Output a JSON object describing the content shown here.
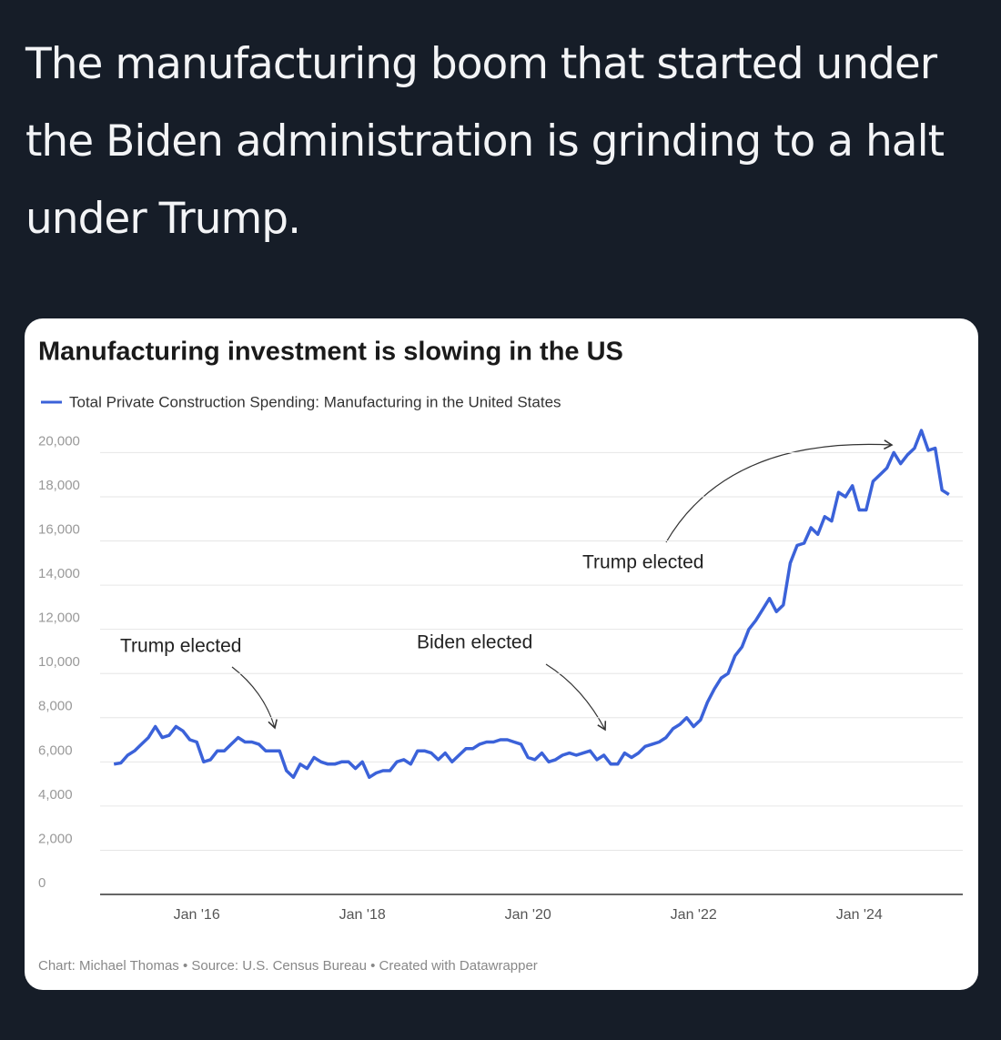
{
  "tweet": {
    "text": "The manufacturing boom that started under the Biden administration is grinding to a halt under Trump."
  },
  "chart_data": {
    "type": "line",
    "title": "Manufacturing investment is slowing in the US",
    "source": "Chart: Michael Thomas • Source: U.S. Census Bureau • Created with Datawrapper",
    "x": [
      "2015-01",
      "2015-02",
      "2015-03",
      "2015-04",
      "2015-05",
      "2015-06",
      "2015-07",
      "2015-08",
      "2015-09",
      "2015-10",
      "2015-11",
      "2015-12",
      "2016-01",
      "2016-02",
      "2016-03",
      "2016-04",
      "2016-05",
      "2016-06",
      "2016-07",
      "2016-08",
      "2016-09",
      "2016-10",
      "2016-11",
      "2016-12",
      "2017-01",
      "2017-02",
      "2017-03",
      "2017-04",
      "2017-05",
      "2017-06",
      "2017-07",
      "2017-08",
      "2017-09",
      "2017-10",
      "2017-11",
      "2017-12",
      "2018-01",
      "2018-02",
      "2018-03",
      "2018-04",
      "2018-05",
      "2018-06",
      "2018-07",
      "2018-08",
      "2018-09",
      "2018-10",
      "2018-11",
      "2018-12",
      "2019-01",
      "2019-02",
      "2019-03",
      "2019-04",
      "2019-05",
      "2019-06",
      "2019-07",
      "2019-08",
      "2019-09",
      "2019-10",
      "2019-11",
      "2019-12",
      "2020-01",
      "2020-02",
      "2020-03",
      "2020-04",
      "2020-05",
      "2020-06",
      "2020-07",
      "2020-08",
      "2020-09",
      "2020-10",
      "2020-11",
      "2020-12",
      "2021-01",
      "2021-02",
      "2021-03",
      "2021-04",
      "2021-05",
      "2021-06",
      "2021-07",
      "2021-08",
      "2021-09",
      "2021-10",
      "2021-11",
      "2021-12",
      "2022-01",
      "2022-02",
      "2022-03",
      "2022-04",
      "2022-05",
      "2022-06",
      "2022-07",
      "2022-08",
      "2022-09",
      "2022-10",
      "2022-11",
      "2022-12",
      "2023-01",
      "2023-02",
      "2023-03",
      "2023-04",
      "2023-05",
      "2023-06",
      "2023-07",
      "2023-08",
      "2023-09",
      "2023-10",
      "2023-11",
      "2023-12",
      "2024-01",
      "2024-02",
      "2024-03",
      "2024-04",
      "2024-05",
      "2024-06",
      "2024-07",
      "2024-08",
      "2024-09",
      "2024-10",
      "2024-11",
      "2024-12",
      "2025-01",
      "2025-02"
    ],
    "series": [
      {
        "name": "Total Private Construction Spending: Manufacturing in the United States",
        "color": "#3b62d9",
        "values": [
          5900,
          5950,
          6300,
          6500,
          6800,
          7100,
          7600,
          7100,
          7200,
          7600,
          7400,
          7000,
          6900,
          6000,
          6100,
          6500,
          6500,
          6800,
          7100,
          6900,
          6900,
          6800,
          6500,
          6500,
          6500,
          5600,
          5300,
          5900,
          5700,
          6200,
          6000,
          5900,
          5900,
          6000,
          6000,
          5700,
          6000,
          5300,
          5500,
          5600,
          5600,
          6000,
          6100,
          5900,
          6500,
          6500,
          6400,
          6100,
          6400,
          6000,
          6300,
          6600,
          6600,
          6800,
          6900,
          6900,
          7000,
          7000,
          6900,
          6800,
          6200,
          6100,
          6400,
          6000,
          6100,
          6300,
          6400,
          6300,
          6400,
          6500,
          6100,
          6300,
          5900,
          5900,
          6400,
          6200,
          6400,
          6700,
          6800,
          6900,
          7100,
          7500,
          7700,
          8000,
          7600,
          7900,
          8700,
          9300,
          9800,
          10000,
          10800,
          11200,
          12000,
          12400,
          12900,
          13400,
          12800,
          13100,
          15000,
          15800,
          15900,
          16600,
          16300,
          17100,
          16900,
          18200,
          18000,
          18500,
          17400,
          17400,
          18700,
          19000,
          19300,
          20000,
          19500,
          19900,
          20200,
          21000,
          20100,
          20200,
          18300,
          18100
        ]
      }
    ],
    "xlim": [
      "2014-11",
      "2025-04"
    ],
    "xticks": [
      {
        "value": "2016-01",
        "label": "Jan '16"
      },
      {
        "value": "2018-01",
        "label": "Jan '18"
      },
      {
        "value": "2020-01",
        "label": "Jan '20"
      },
      {
        "value": "2022-01",
        "label": "Jan '22"
      },
      {
        "value": "2024-01",
        "label": "Jan '24"
      }
    ],
    "ylim": [
      0,
      21500
    ],
    "yticks": [
      0,
      {
        "value": 2000,
        "label": "2,000"
      },
      {
        "value": 4000,
        "label": "4,000"
      },
      {
        "value": 6000,
        "label": "6,000"
      },
      {
        "value": 8000,
        "label": "8,000"
      },
      {
        "value": 10000,
        "label": "10,000"
      },
      {
        "value": 12000,
        "label": "12,000"
      },
      {
        "value": 14000,
        "label": "14,000"
      },
      {
        "value": 16000,
        "label": "16,000"
      },
      {
        "value": 18000,
        "label": "18,000"
      },
      {
        "value": 20000,
        "label": "20,000"
      }
    ],
    "grid": true,
    "annotations": [
      "Trump elected",
      "Biden elected",
      "Trump elected"
    ]
  }
}
